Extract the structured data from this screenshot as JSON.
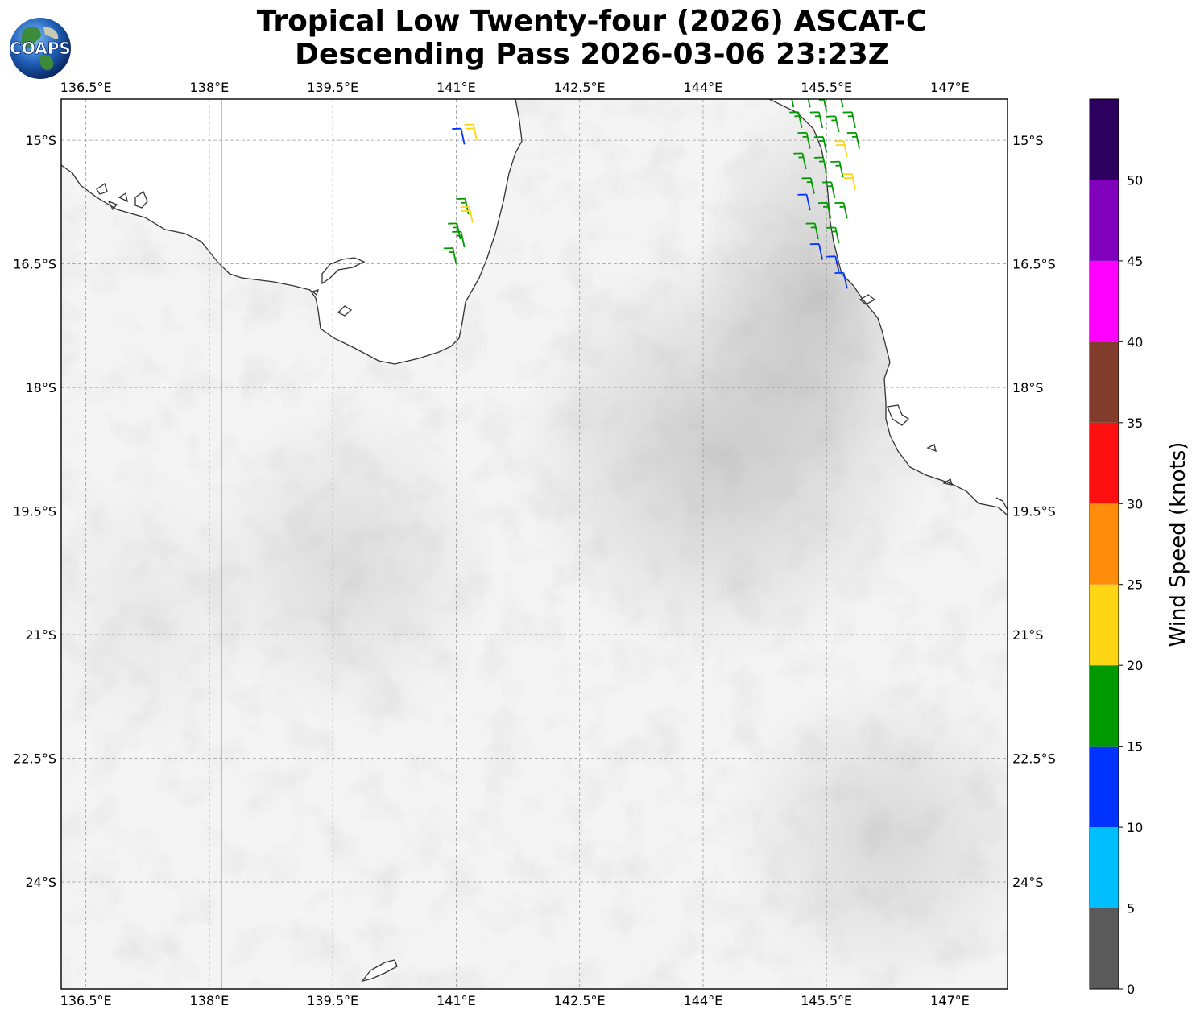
{
  "title": {
    "line1": "Tropical Low Twenty-four (2026) ASCAT-C",
    "line2": "Descending Pass 2026-03-06 23:23Z"
  },
  "logo": {
    "text": "COAPS",
    "icon": "globe-logo"
  },
  "map": {
    "lon_range": [
      136.2,
      147.7
    ],
    "lat_range": [
      -14.5,
      -25.3
    ],
    "lon_ticks": [
      "136.5°E",
      "138°E",
      "139.5°E",
      "141°E",
      "142.5°E",
      "144°E",
      "145.5°E",
      "147°E"
    ],
    "lat_ticks": [
      "15°S",
      "16.5°S",
      "18°S",
      "19.5°S",
      "21°S",
      "22.5°S",
      "24°S"
    ],
    "gridlines": true,
    "background": "grayscale satellite imagery",
    "features": [
      "coastline",
      "138°E meridian line"
    ]
  },
  "wind_barbs": [
    {
      "lon": 141.1,
      "lat": -15.05,
      "speed": 12
    },
    {
      "lon": 141.25,
      "lat": -15.0,
      "speed": 22
    },
    {
      "lon": 141.15,
      "lat": -15.9,
      "speed": 17
    },
    {
      "lon": 141.2,
      "lat": -16.0,
      "speed": 21
    },
    {
      "lon": 141.05,
      "lat": -16.2,
      "speed": 18
    },
    {
      "lon": 141.1,
      "lat": -16.3,
      "speed": 19
    },
    {
      "lon": 141.0,
      "lat": -16.5,
      "speed": 17
    },
    {
      "lon": 145.1,
      "lat": -14.6,
      "speed": 18
    },
    {
      "lon": 145.3,
      "lat": -14.6,
      "speed": 19
    },
    {
      "lon": 145.5,
      "lat": -14.65,
      "speed": 17
    },
    {
      "lon": 145.7,
      "lat": -14.6,
      "speed": 18
    },
    {
      "lon": 145.2,
      "lat": -14.85,
      "speed": 17
    },
    {
      "lon": 145.45,
      "lat": -14.85,
      "speed": 18
    },
    {
      "lon": 145.65,
      "lat": -14.9,
      "speed": 19
    },
    {
      "lon": 145.85,
      "lat": -14.85,
      "speed": 17
    },
    {
      "lon": 145.3,
      "lat": -15.1,
      "speed": 18
    },
    {
      "lon": 145.5,
      "lat": -15.15,
      "speed": 18
    },
    {
      "lon": 145.75,
      "lat": -15.2,
      "speed": 22
    },
    {
      "lon": 145.9,
      "lat": -15.1,
      "speed": 19
    },
    {
      "lon": 145.25,
      "lat": -15.35,
      "speed": 17
    },
    {
      "lon": 145.5,
      "lat": -15.4,
      "speed": 19
    },
    {
      "lon": 145.7,
      "lat": -15.45,
      "speed": 18
    },
    {
      "lon": 145.85,
      "lat": -15.6,
      "speed": 23
    },
    {
      "lon": 145.35,
      "lat": -15.65,
      "speed": 17
    },
    {
      "lon": 145.6,
      "lat": -15.7,
      "speed": 19
    },
    {
      "lon": 145.3,
      "lat": -15.85,
      "speed": 13
    },
    {
      "lon": 145.55,
      "lat": -15.95,
      "speed": 18
    },
    {
      "lon": 145.75,
      "lat": -15.95,
      "speed": 18
    },
    {
      "lon": 145.4,
      "lat": -16.2,
      "speed": 17
    },
    {
      "lon": 145.65,
      "lat": -16.25,
      "speed": 18
    },
    {
      "lon": 145.45,
      "lat": -16.45,
      "speed": 12
    },
    {
      "lon": 145.65,
      "lat": -16.6,
      "speed": 13
    },
    {
      "lon": 145.75,
      "lat": -16.8,
      "speed": 12
    }
  ],
  "colorbar": {
    "title": "Wind Speed (knots)",
    "tick_labels": [
      "0",
      "5",
      "10",
      "15",
      "20",
      "25",
      "30",
      "35",
      "40",
      "45",
      "50"
    ],
    "bins": [
      {
        "from": 0,
        "to": 5,
        "color": "#5a5a5a"
      },
      {
        "from": 5,
        "to": 10,
        "color": "#00bfff"
      },
      {
        "from": 10,
        "to": 15,
        "color": "#0033ff"
      },
      {
        "from": 15,
        "to": 20,
        "color": "#009900"
      },
      {
        "from": 20,
        "to": 25,
        "color": "#ffd613"
      },
      {
        "from": 25,
        "to": 30,
        "color": "#ff8c0a"
      },
      {
        "from": 30,
        "to": 35,
        "color": "#ff1010"
      },
      {
        "from": 35,
        "to": 40,
        "color": "#823c2c"
      },
      {
        "from": 40,
        "to": 45,
        "color": "#ff00ff"
      },
      {
        "from": 45,
        "to": 50,
        "color": "#8000bb"
      },
      {
        "from": 50,
        "to": 55,
        "color": "#2d0060"
      }
    ]
  }
}
